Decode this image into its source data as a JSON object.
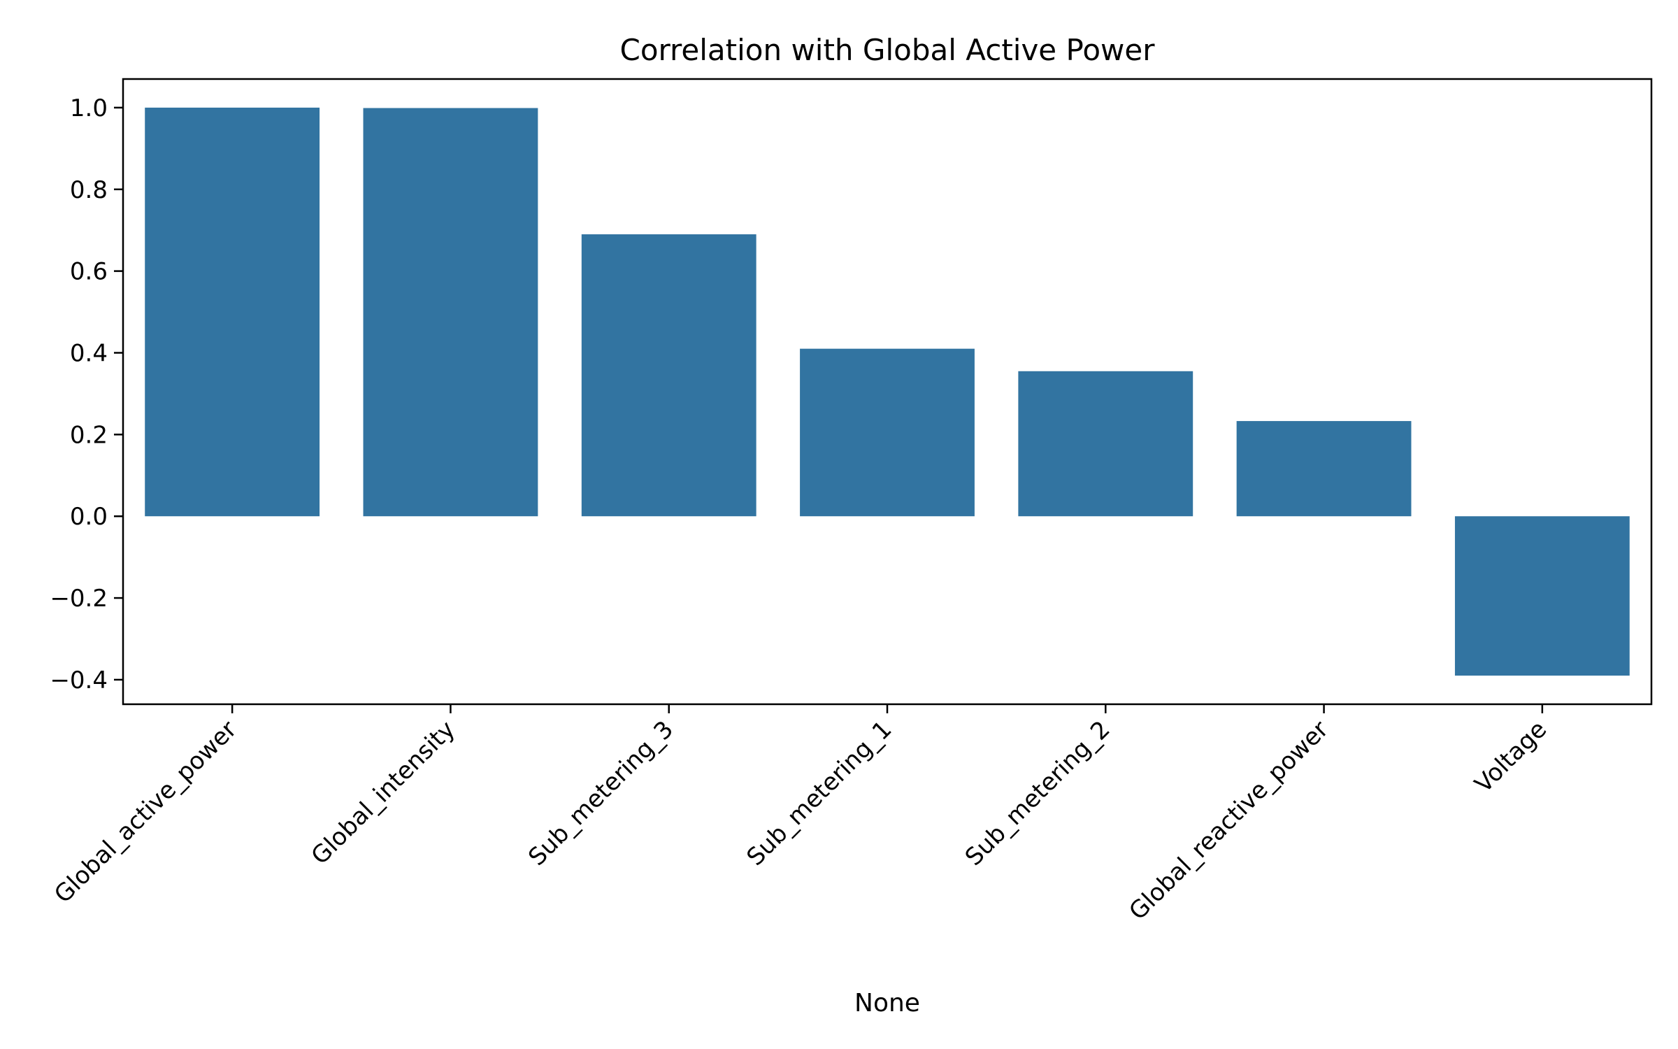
{
  "chart_data": {
    "type": "bar",
    "title": "Correlation with Global Active Power",
    "xlabel": "None",
    "ylabel": "",
    "categories": [
      "Global_active_power",
      "Global_intensity",
      "Sub_metering_3",
      "Sub_metering_1",
      "Sub_metering_2",
      "Global_reactive_power",
      "Voltage"
    ],
    "values": [
      1.0,
      0.999,
      0.69,
      0.41,
      0.355,
      0.233,
      -0.39
    ],
    "ylim": [
      -0.46,
      1.07
    ],
    "yticks": [
      -0.4,
      -0.2,
      0.0,
      0.2,
      0.4,
      0.6,
      0.8,
      1.0
    ],
    "ytick_labels": [
      "−0.4",
      "−0.2",
      "0.0",
      "0.2",
      "0.4",
      "0.6",
      "0.8",
      "1.0"
    ],
    "bar_color": "#3274a1",
    "grid": false,
    "legend": "none",
    "xtick_rotation_deg": 45
  }
}
